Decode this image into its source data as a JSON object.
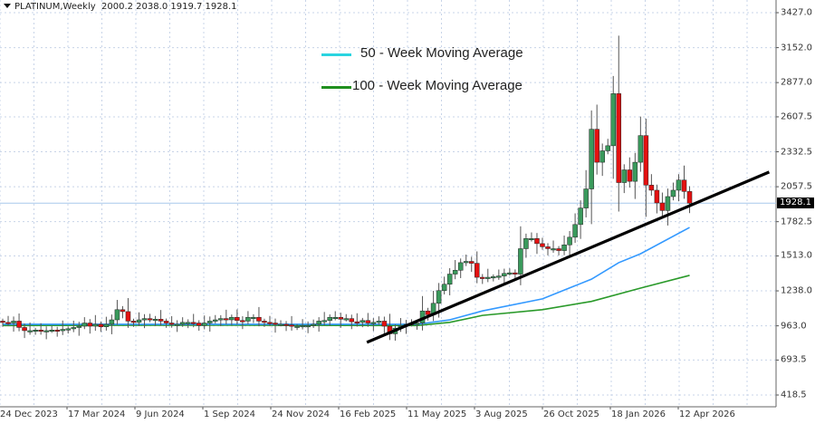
{
  "header": {
    "symbol": "PLATINUM,Weekly",
    "ohlc": "2000.2 2038.0 1919.7 1928.1"
  },
  "legend": [
    {
      "label": "50 - Week Moving Average",
      "color": "#2ad4e0"
    },
    {
      "label": "100 - Week Moving Average",
      "color": "#1f8f1f"
    }
  ],
  "current_price": "1928.1",
  "colors": {
    "up": "#3a9a5c",
    "down": "#e41010",
    "ma50": "#3399ff",
    "ma100": "#2a9a2a",
    "trendline": "#000000",
    "grid": "#c8d4e8",
    "current_line": "#a8c8ec"
  },
  "chart_data": {
    "type": "candlestick",
    "title": "PLATINUM,Weekly",
    "ylim": [
      418.5,
      3427.0
    ],
    "y_ticks": [
      "3427.0",
      "3152.0",
      "2877.0",
      "2607.5",
      "2332.5",
      "2057.5",
      "1782.5",
      "1513.0",
      "1238.0",
      "963.0",
      "693.5",
      "418.5"
    ],
    "x_ticks": [
      "24 Dec 2023",
      "17 Mar 2024",
      "9 Jun 2024",
      "1 Sep 2024",
      "24 Nov 2024",
      "16 Feb 2025",
      "11 May 2025",
      "3 Aug 2025",
      "26 Oct 2025",
      "18 Jan 2026",
      "12 Apr 2026"
    ],
    "first_open": 1000,
    "close": [
      990,
      985,
      1000,
      950,
      925,
      925,
      930,
      920,
      925,
      930,
      925,
      935,
      940,
      950,
      960,
      985,
      960,
      975,
      955,
      975,
      1010,
      1090,
      1075,
      1000,
      990,
      1010,
      1020,
      1010,
      1015,
      1000,
      985,
      975,
      975,
      990,
      990,
      985,
      965,
      985,
      1000,
      1010,
      1020,
      1010,
      1030,
      1005,
      1000,
      1030,
      1030,
      1000,
      990,
      985,
      975,
      975,
      970,
      960,
      960,
      965,
      965,
      975,
      1000,
      1005,
      1030,
      1030,
      1015,
      1020,
      995,
      990,
      1005,
      985,
      990,
      1000,
      960,
      900,
      945,
      965,
      975,
      980,
      985,
      1080,
      1050,
      1140,
      1240,
      1290,
      1370,
      1400,
      1460,
      1470,
      1455,
      1345,
      1340,
      1345,
      1350,
      1355,
      1375,
      1380,
      1370,
      1570,
      1650,
      1650,
      1610,
      1585,
      1570,
      1570,
      1555,
      1600,
      1660,
      1760,
      1890,
      2040,
      2510,
      2250,
      2340,
      2380,
      2790,
      2090,
      2190,
      2100,
      2250,
      2460,
      2070,
      2030,
      1930,
      1870,
      1980,
      2030,
      2110,
      2020,
      1928.1
    ],
    "ma50": [
      [
        0,
        975
      ],
      [
        40,
        975
      ],
      [
        76,
        975
      ],
      [
        82,
        1010
      ],
      [
        88,
        1080
      ],
      [
        99,
        1175
      ],
      [
        108,
        1330
      ],
      [
        113,
        1460
      ],
      [
        117,
        1530
      ],
      [
        126,
        1737
      ]
    ],
    "ma100": [
      [
        0,
        965
      ],
      [
        40,
        968
      ],
      [
        76,
        965
      ],
      [
        82,
        990
      ],
      [
        88,
        1045
      ],
      [
        99,
        1090
      ],
      [
        108,
        1155
      ],
      [
        117,
        1260
      ],
      [
        126,
        1360
      ]
    ],
    "trendline": [
      [
        66.8,
        833
      ],
      [
        140.6,
        2173
      ]
    ],
    "legend_position": "top-center"
  }
}
